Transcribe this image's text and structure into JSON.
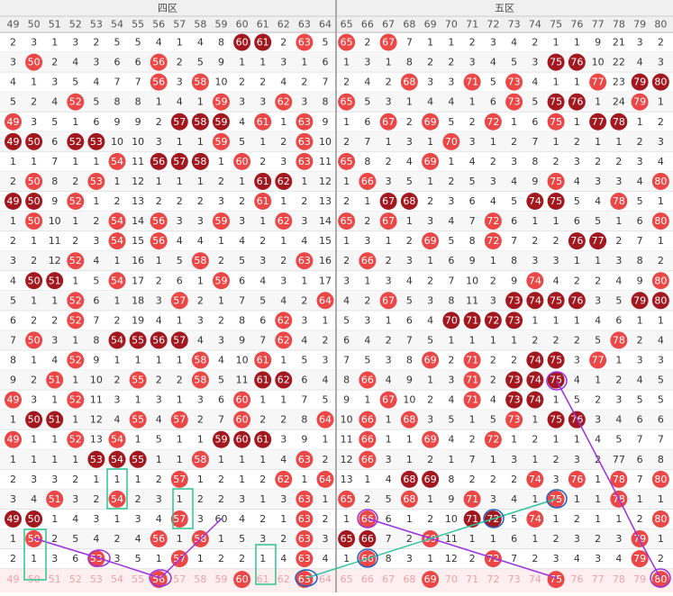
{
  "header": {
    "zones": [
      "四区",
      "五区"
    ],
    "columns": [
      49,
      50,
      51,
      52,
      53,
      54,
      55,
      56,
      57,
      58,
      59,
      60,
      61,
      62,
      63,
      64,
      65,
      66,
      67,
      68,
      69,
      70,
      71,
      72,
      73,
      74,
      75,
      76,
      77,
      78,
      79,
      80
    ]
  },
  "rows": [
    [
      2,
      3,
      1,
      3,
      2,
      5,
      5,
      4,
      1,
      4,
      8,
      60,
      61,
      2,
      63,
      5,
      65,
      2,
      67,
      7,
      1,
      1,
      2,
      3,
      4,
      2,
      1,
      1,
      9,
      21,
      3,
      2
    ],
    [
      3,
      50,
      2,
      4,
      3,
      6,
      6,
      56,
      2,
      5,
      9,
      1,
      1,
      3,
      1,
      6,
      1,
      3,
      1,
      8,
      2,
      2,
      3,
      4,
      5,
      3,
      75,
      76,
      10,
      22,
      4,
      3
    ],
    [
      4,
      1,
      3,
      5,
      4,
      7,
      7,
      56,
      3,
      58,
      10,
      2,
      2,
      4,
      2,
      7,
      2,
      4,
      2,
      68,
      3,
      3,
      71,
      5,
      73,
      4,
      1,
      1,
      77,
      23,
      79,
      80
    ],
    [
      5,
      2,
      4,
      52,
      5,
      8,
      8,
      1,
      4,
      1,
      59,
      3,
      3,
      62,
      3,
      8,
      65,
      5,
      3,
      1,
      4,
      4,
      1,
      6,
      73,
      5,
      75,
      76,
      1,
      24,
      79,
      1
    ],
    [
      49,
      3,
      5,
      1,
      6,
      9,
      9,
      2,
      57,
      58,
      59,
      4,
      61,
      1,
      63,
      9,
      1,
      6,
      67,
      2,
      69,
      5,
      2,
      72,
      1,
      6,
      75,
      1,
      77,
      78,
      1,
      2
    ],
    [
      49,
      50,
      6,
      52,
      53,
      10,
      10,
      3,
      1,
      1,
      59,
      5,
      1,
      2,
      63,
      10,
      2,
      7,
      1,
      3,
      1,
      70,
      3,
      1,
      2,
      7,
      1,
      2,
      1,
      1,
      2,
      3
    ],
    [
      1,
      1,
      7,
      1,
      1,
      54,
      11,
      56,
      57,
      58,
      1,
      60,
      2,
      3,
      63,
      11,
      65,
      8,
      2,
      4,
      69,
      1,
      4,
      2,
      3,
      8,
      2,
      3,
      2,
      2,
      3,
      4
    ],
    [
      2,
      50,
      8,
      2,
      53,
      1,
      12,
      1,
      1,
      1,
      2,
      1,
      61,
      62,
      1,
      12,
      1,
      66,
      3,
      5,
      1,
      2,
      5,
      3,
      4,
      9,
      75,
      4,
      3,
      3,
      4,
      80
    ],
    [
      49,
      50,
      9,
      52,
      1,
      2,
      13,
      2,
      2,
      2,
      3,
      2,
      61,
      1,
      2,
      13,
      2,
      1,
      67,
      68,
      2,
      3,
      6,
      4,
      5,
      74,
      75,
      5,
      4,
      78,
      5,
      1
    ],
    [
      1,
      50,
      10,
      1,
      2,
      54,
      14,
      56,
      3,
      3,
      59,
      3,
      1,
      62,
      3,
      14,
      65,
      2,
      67,
      1,
      3,
      4,
      7,
      72,
      6,
      1,
      1,
      6,
      5,
      1,
      6,
      80
    ],
    [
      2,
      1,
      11,
      2,
      3,
      54,
      15,
      56,
      4,
      4,
      1,
      4,
      2,
      1,
      4,
      15,
      1,
      3,
      1,
      2,
      69,
      5,
      8,
      72,
      7,
      2,
      2,
      76,
      77,
      2,
      7,
      1
    ],
    [
      3,
      2,
      12,
      52,
      4,
      1,
      16,
      1,
      5,
      58,
      2,
      5,
      3,
      2,
      63,
      16,
      2,
      66,
      2,
      3,
      1,
      6,
      9,
      1,
      8,
      3,
      3,
      1,
      1,
      3,
      8,
      2
    ],
    [
      4,
      50,
      51,
      1,
      5,
      54,
      17,
      2,
      6,
      1,
      59,
      6,
      4,
      3,
      1,
      17,
      3,
      1,
      3,
      4,
      2,
      7,
      10,
      2,
      9,
      74,
      4,
      2,
      2,
      4,
      9,
      80
    ],
    [
      5,
      1,
      1,
      52,
      6,
      1,
      18,
      3,
      57,
      2,
      1,
      7,
      5,
      4,
      2,
      64,
      4,
      2,
      67,
      5,
      3,
      8,
      11,
      3,
      73,
      74,
      75,
      76,
      3,
      5,
      79,
      80
    ],
    [
      6,
      2,
      2,
      52,
      7,
      2,
      19,
      4,
      1,
      3,
      2,
      8,
      6,
      62,
      3,
      1,
      5,
      3,
      1,
      6,
      4,
      70,
      71,
      72,
      73,
      1,
      1,
      1,
      4,
      6,
      1,
      1
    ],
    [
      7,
      50,
      3,
      1,
      8,
      54,
      55,
      56,
      57,
      4,
      3,
      9,
      7,
      62,
      4,
      2,
      6,
      4,
      2,
      7,
      5,
      1,
      1,
      1,
      1,
      2,
      2,
      2,
      5,
      78,
      2,
      4
    ],
    [
      8,
      1,
      4,
      52,
      9,
      1,
      1,
      1,
      1,
      58,
      4,
      10,
      61,
      1,
      5,
      3,
      7,
      5,
      3,
      8,
      69,
      2,
      71,
      2,
      2,
      74,
      75,
      3,
      77,
      1,
      3,
      3
    ],
    [
      9,
      2,
      51,
      1,
      10,
      2,
      55,
      2,
      2,
      58,
      5,
      11,
      61,
      62,
      6,
      4,
      8,
      66,
      4,
      9,
      1,
      3,
      71,
      2,
      73,
      74,
      75,
      4,
      1,
      2,
      4,
      5
    ],
    [
      49,
      3,
      1,
      52,
      11,
      3,
      1,
      3,
      1,
      3,
      6,
      60,
      1,
      1,
      7,
      5,
      9,
      1,
      67,
      10,
      2,
      4,
      71,
      4,
      73,
      74,
      1,
      5,
      2,
      3,
      5,
      5
    ],
    [
      1,
      50,
      51,
      1,
      12,
      4,
      55,
      4,
      57,
      2,
      7,
      60,
      2,
      2,
      8,
      64,
      10,
      66,
      1,
      68,
      3,
      5,
      1,
      5,
      73,
      1,
      75,
      76,
      3,
      4,
      6,
      6
    ],
    [
      49,
      1,
      1,
      52,
      13,
      54,
      1,
      5,
      1,
      1,
      59,
      60,
      61,
      3,
      9,
      1,
      11,
      66,
      1,
      1,
      69,
      4,
      2,
      72,
      1,
      2,
      1,
      1,
      4,
      5,
      7,
      7
    ],
    [
      1,
      1,
      1,
      1,
      53,
      54,
      55,
      1,
      1,
      58,
      1,
      1,
      1,
      4,
      63,
      2,
      12,
      66,
      3,
      1,
      2,
      1,
      7,
      1,
      3,
      1,
      2,
      3,
      2,
      77,
      6,
      8
    ],
    [
      2,
      3,
      3,
      2,
      1,
      1,
      1,
      2,
      57,
      1,
      2,
      1,
      2,
      62,
      1,
      64,
      13,
      1,
      4,
      68,
      69,
      8,
      2,
      2,
      2,
      74,
      3,
      76,
      1,
      78,
      7,
      80
    ],
    [
      3,
      4,
      51,
      3,
      2,
      54,
      2,
      3,
      1,
      2,
      2,
      3,
      1,
      3,
      63,
      1,
      65,
      2,
      5,
      68,
      1,
      9,
      71,
      3,
      4,
      1,
      75,
      1,
      1,
      78,
      1,
      1
    ],
    [
      49,
      50,
      1,
      4,
      3,
      1,
      3,
      4,
      57,
      3,
      60,
      4,
      2,
      1,
      63,
      2,
      1,
      66,
      6,
      1,
      2,
      10,
      71,
      72,
      5,
      74,
      1,
      2,
      1,
      1,
      2,
      80
    ],
    [
      1,
      50,
      2,
      5,
      4,
      2,
      4,
      56,
      1,
      58,
      1,
      5,
      3,
      2,
      63,
      3,
      65,
      66,
      7,
      2,
      69,
      11,
      1,
      1,
      6,
      1,
      2,
      3,
      2,
      3,
      79,
      1
    ],
    [
      2,
      1,
      3,
      6,
      53,
      3,
      5,
      1,
      57,
      1,
      2,
      2,
      1,
      4,
      63,
      4,
      1,
      66,
      8,
      3,
      1,
      12,
      2,
      72,
      7,
      2,
      3,
      4,
      3,
      4,
      79,
      2
    ]
  ],
  "footer": {
    "cells": [
      49,
      50,
      51,
      52,
      53,
      54,
      55,
      56,
      57,
      58,
      59,
      60,
      61,
      62,
      63,
      64,
      65,
      66,
      67,
      68,
      69,
      70,
      71,
      72,
      73,
      74,
      75,
      76,
      77,
      78,
      79,
      80
    ],
    "balls": [
      56,
      60,
      63,
      69,
      75,
      80
    ]
  }
}
